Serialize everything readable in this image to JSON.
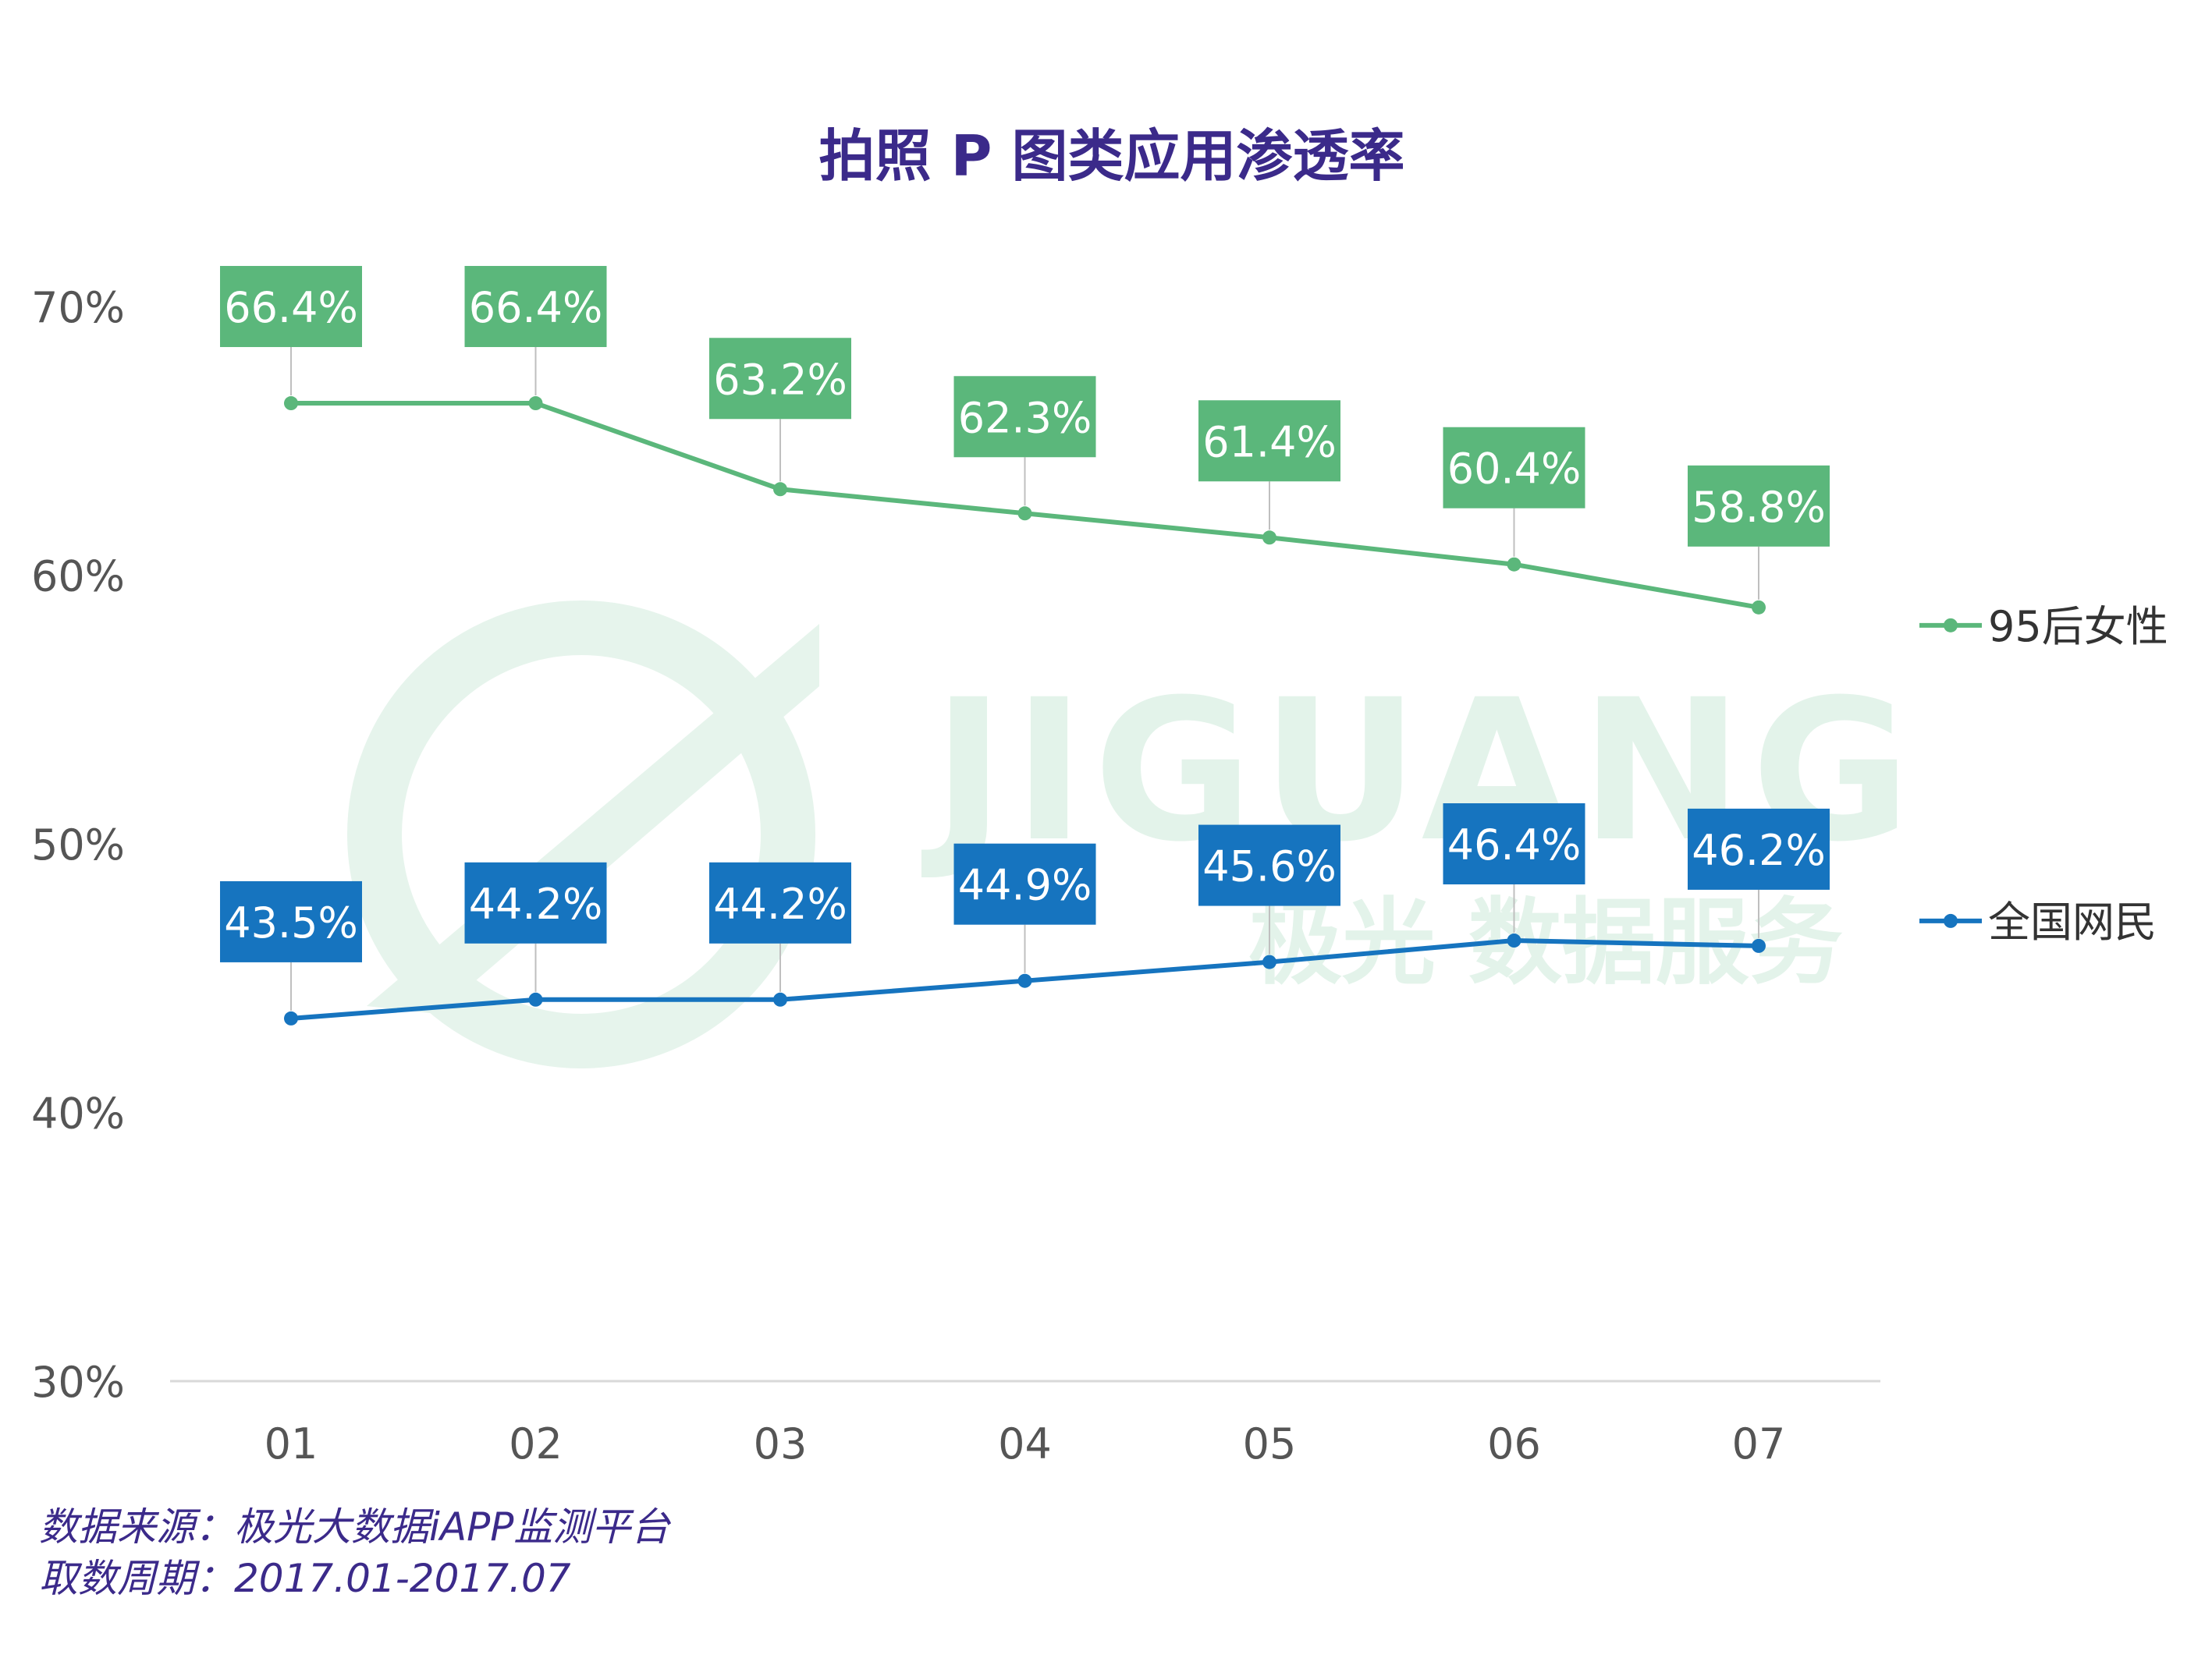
{
  "watermark": {
    "logo_text": "JIGUANG",
    "logo_sub": "极光 数据服务"
  },
  "source": {
    "line1": "数据来源：极光大数据iAPP监测平台",
    "line2": "取数周期：2017.01-2017.07"
  },
  "chart_data": {
    "type": "line",
    "title": "拍照 P 图类应用渗透率",
    "xlabel": "",
    "ylabel": "",
    "categories": [
      "01",
      "02",
      "03",
      "04",
      "05",
      "06",
      "07"
    ],
    "ylim": [
      30,
      70
    ],
    "yticks": [
      30,
      40,
      50,
      60,
      70
    ],
    "ytick_labels": [
      "30%",
      "40%",
      "50%",
      "60%",
      "70%"
    ],
    "grid": false,
    "legend_position": "right",
    "series": [
      {
        "name": "95后女性",
        "color": "#5bb77b",
        "values": [
          66.4,
          66.4,
          63.2,
          62.3,
          61.4,
          60.4,
          58.8
        ],
        "labels": [
          "66.4%",
          "66.4%",
          "63.2%",
          "62.3%",
          "61.4%",
          "60.4%",
          "58.8%"
        ]
      },
      {
        "name": "全国网民",
        "color": "#1674bf",
        "values": [
          43.5,
          44.2,
          44.2,
          44.9,
          45.6,
          46.4,
          46.2
        ],
        "labels": [
          "43.5%",
          "44.2%",
          "44.2%",
          "44.9%",
          "45.6%",
          "46.4%",
          "46.2%"
        ]
      }
    ]
  }
}
